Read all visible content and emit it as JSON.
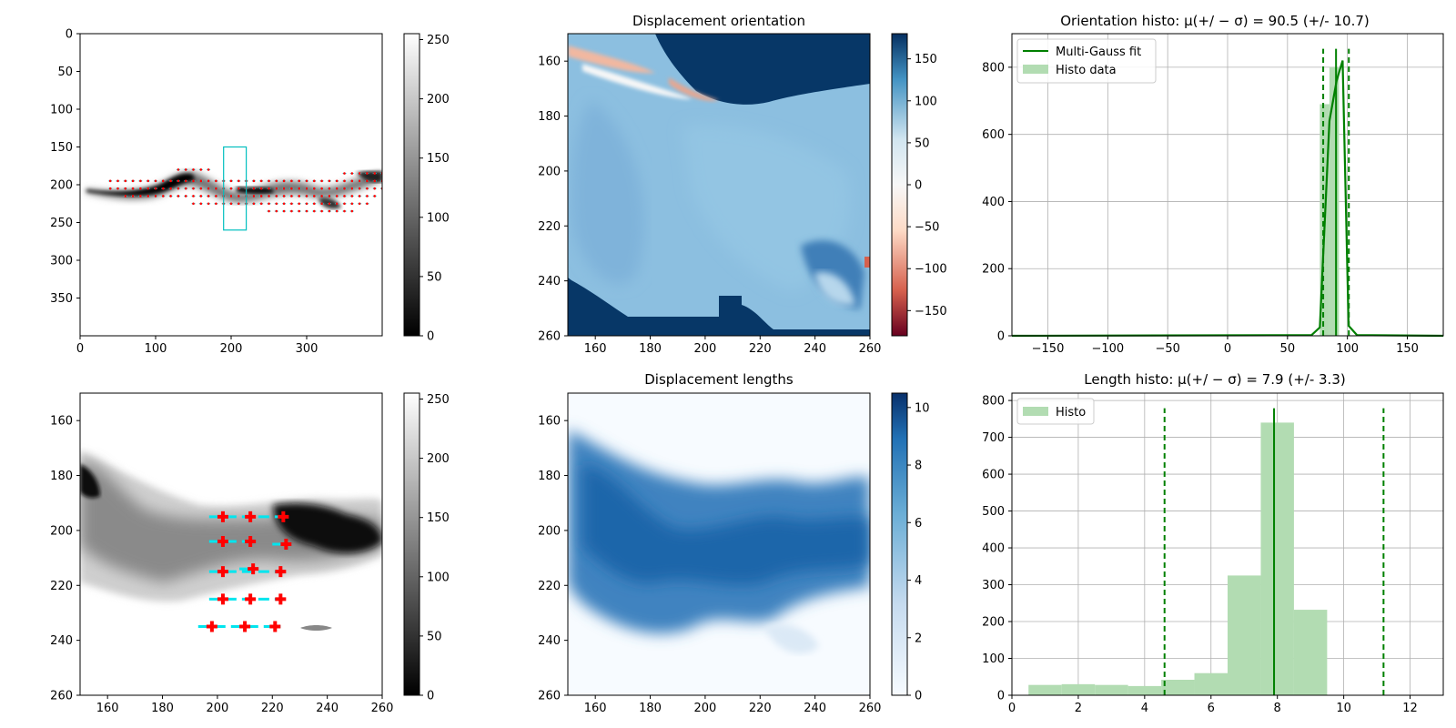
{
  "figure": {
    "background": "#ffffff"
  },
  "chart_data": [
    {
      "id": "input-image",
      "type": "heatmap",
      "title": "",
      "xlim": [
        0,
        400
      ],
      "ylim": [
        400,
        0
      ],
      "xticks": [
        0,
        100,
        200,
        300
      ],
      "yticks": [
        0,
        50,
        100,
        150,
        200,
        250,
        300,
        350
      ],
      "colormap": "gray",
      "colorbar": {
        "min": 0,
        "max": 255,
        "ticks": [
          0,
          50,
          100,
          150,
          200,
          250
        ]
      },
      "roi_box": {
        "x": [
          190,
          220
        ],
        "y": [
          150,
          260
        ],
        "color": "#00bfbf"
      },
      "quiver_color": "#ff0000"
    },
    {
      "id": "displacement-orientation",
      "type": "heatmap",
      "title": "Displacement orientation",
      "xlim": [
        150,
        260
      ],
      "ylim": [
        260,
        150
      ],
      "xticks": [
        160,
        180,
        200,
        220,
        240,
        260
      ],
      "yticks": [
        160,
        180,
        200,
        220,
        240,
        260
      ],
      "colormap": "RdBu",
      "colorbar": {
        "min": -180,
        "max": 180,
        "ticks": [
          -150,
          -100,
          -50,
          0,
          50,
          100,
          150
        ]
      }
    },
    {
      "id": "orientation-histogram",
      "type": "bar",
      "title": "Orientation histo: μ(+/ − σ) = 90.5 (+/- 10.7)",
      "xlim": [
        -180,
        180
      ],
      "ylim": [
        0,
        900
      ],
      "xticks": [
        -150,
        -100,
        -50,
        0,
        50,
        100,
        150
      ],
      "yticks": [
        0,
        200,
        400,
        600,
        800
      ],
      "grid": true,
      "legend": {
        "placement": "top-left",
        "entries": [
          "Multi-Gauss fit",
          "Histo data"
        ]
      },
      "bins": [
        {
          "x0": 77,
          "x1": 85,
          "value": 690
        },
        {
          "x0": 85,
          "x1": 93,
          "value": 800
        }
      ],
      "fit_line": {
        "x": [
          -180,
          70,
          77,
          85,
          91,
          96,
          101,
          108,
          180
        ],
        "y": [
          0,
          2,
          25,
          640,
          760,
          820,
          30,
          2,
          0
        ]
      },
      "mean": 90.5,
      "std": 10.7,
      "colors": {
        "line": "#008000",
        "bar": "#b2dcb2"
      }
    },
    {
      "id": "zoomed-image",
      "type": "heatmap",
      "title": "",
      "xlim": [
        150,
        260
      ],
      "ylim": [
        260,
        150
      ],
      "xticks": [
        160,
        180,
        200,
        220,
        240,
        260
      ],
      "yticks": [
        160,
        180,
        200,
        220,
        240,
        260
      ],
      "colormap": "gray",
      "colorbar": {
        "min": 0,
        "max": 255,
        "ticks": [
          0,
          50,
          100,
          150,
          200,
          250
        ]
      },
      "markers": [
        {
          "x": 202,
          "y": 195
        },
        {
          "x": 212,
          "y": 195
        },
        {
          "x": 224,
          "y": 195
        },
        {
          "x": 202,
          "y": 204
        },
        {
          "x": 212,
          "y": 204
        },
        {
          "x": 225,
          "y": 205
        },
        {
          "x": 202,
          "y": 215
        },
        {
          "x": 213,
          "y": 214
        },
        {
          "x": 223,
          "y": 215
        },
        {
          "x": 202,
          "y": 225
        },
        {
          "x": 212,
          "y": 225
        },
        {
          "x": 223,
          "y": 225
        },
        {
          "x": 198,
          "y": 235
        },
        {
          "x": 210,
          "y": 235
        },
        {
          "x": 221,
          "y": 235
        }
      ],
      "colors": {
        "marker": "#ff0000",
        "arrow": "#00e5ee"
      }
    },
    {
      "id": "displacement-lengths",
      "type": "heatmap",
      "title": "Displacement lengths",
      "xlim": [
        150,
        260
      ],
      "ylim": [
        260,
        150
      ],
      "xticks": [
        160,
        180,
        200,
        220,
        240,
        260
      ],
      "yticks": [
        160,
        180,
        200,
        220,
        240,
        260
      ],
      "colormap": "Blues",
      "colorbar": {
        "min": 0,
        "max": 10.5,
        "ticks": [
          0,
          2,
          4,
          6,
          8,
          10
        ]
      }
    },
    {
      "id": "length-histogram",
      "type": "bar",
      "title": "Length histo: μ(+/ − σ) = 7.9 (+/- 3.3)",
      "xlim": [
        0,
        13
      ],
      "ylim": [
        0,
        820
      ],
      "xticks": [
        0,
        2,
        4,
        6,
        8,
        10,
        12
      ],
      "yticks": [
        0,
        100,
        200,
        300,
        400,
        500,
        600,
        700,
        800
      ],
      "grid": true,
      "legend": {
        "placement": "top-left",
        "entries": [
          "Histo"
        ]
      },
      "bins": [
        {
          "x0": 0.5,
          "x1": 1.5,
          "value": 28
        },
        {
          "x0": 1.5,
          "x1": 2.5,
          "value": 30
        },
        {
          "x0": 2.5,
          "x1": 3.5,
          "value": 28
        },
        {
          "x0": 3.5,
          "x1": 4.5,
          "value": 25
        },
        {
          "x0": 4.5,
          "x1": 5.5,
          "value": 42
        },
        {
          "x0": 5.5,
          "x1": 6.5,
          "value": 60
        },
        {
          "x0": 6.5,
          "x1": 7.5,
          "value": 325
        },
        {
          "x0": 7.5,
          "x1": 8.5,
          "value": 740
        },
        {
          "x0": 8.5,
          "x1": 9.5,
          "value": 232
        }
      ],
      "mean": 7.9,
      "std": 3.3,
      "colors": {
        "line": "#008000",
        "bar": "#b2dcb2"
      }
    }
  ]
}
